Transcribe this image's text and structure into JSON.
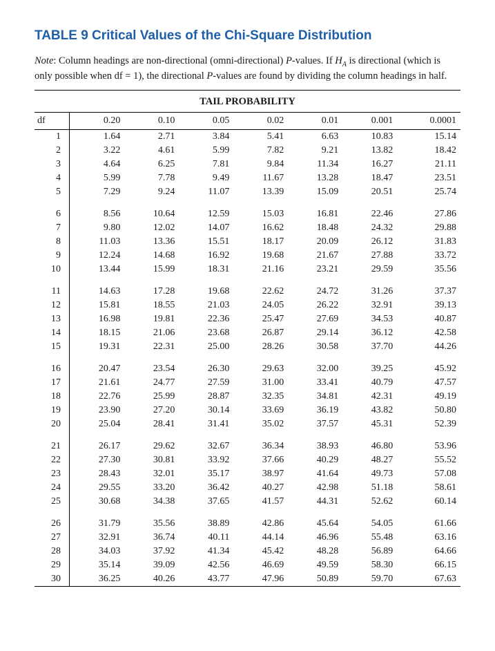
{
  "title": "TABLE 9 Critical Values of the Chi-Square Distribution",
  "note_prefix": "Note",
  "note_body": ": Column headings are non-directional (omni-directional) ",
  "note_pvalues": "P",
  "note_body2": "-values. If ",
  "note_ha": "H",
  "note_ha_sub": "A",
  "note_body3": " is directional (which is only possible when df = 1), the directional ",
  "note_body4": "-values are found by dividing the column headings in half.",
  "caption": "TAIL PROBABILITY",
  "headers": [
    "df",
    "0.20",
    "0.10",
    "0.05",
    "0.02",
    "0.01",
    "0.001",
    "0.0001"
  ],
  "colors": {
    "title": "#1e5fa8",
    "text": "#1a1a1a",
    "rule": "#000000",
    "background": "#ffffff"
  },
  "typography": {
    "title_fontsize": 19,
    "body_fontsize": 14.5,
    "table_fontsize": 14
  },
  "groups": [
    [
      [
        "1",
        "1.64",
        "2.71",
        "3.84",
        "5.41",
        "6.63",
        "10.83",
        "15.14"
      ],
      [
        "2",
        "3.22",
        "4.61",
        "5.99",
        "7.82",
        "9.21",
        "13.82",
        "18.42"
      ],
      [
        "3",
        "4.64",
        "6.25",
        "7.81",
        "9.84",
        "11.34",
        "16.27",
        "21.11"
      ],
      [
        "4",
        "5.99",
        "7.78",
        "9.49",
        "11.67",
        "13.28",
        "18.47",
        "23.51"
      ],
      [
        "5",
        "7.29",
        "9.24",
        "11.07",
        "13.39",
        "15.09",
        "20.51",
        "25.74"
      ]
    ],
    [
      [
        "6",
        "8.56",
        "10.64",
        "12.59",
        "15.03",
        "16.81",
        "22.46",
        "27.86"
      ],
      [
        "7",
        "9.80",
        "12.02",
        "14.07",
        "16.62",
        "18.48",
        "24.32",
        "29.88"
      ],
      [
        "8",
        "11.03",
        "13.36",
        "15.51",
        "18.17",
        "20.09",
        "26.12",
        "31.83"
      ],
      [
        "9",
        "12.24",
        "14.68",
        "16.92",
        "19.68",
        "21.67",
        "27.88",
        "33.72"
      ],
      [
        "10",
        "13.44",
        "15.99",
        "18.31",
        "21.16",
        "23.21",
        "29.59",
        "35.56"
      ]
    ],
    [
      [
        "11",
        "14.63",
        "17.28",
        "19.68",
        "22.62",
        "24.72",
        "31.26",
        "37.37"
      ],
      [
        "12",
        "15.81",
        "18.55",
        "21.03",
        "24.05",
        "26.22",
        "32.91",
        "39.13"
      ],
      [
        "13",
        "16.98",
        "19.81",
        "22.36",
        "25.47",
        "27.69",
        "34.53",
        "40.87"
      ],
      [
        "14",
        "18.15",
        "21.06",
        "23.68",
        "26.87",
        "29.14",
        "36.12",
        "42.58"
      ],
      [
        "15",
        "19.31",
        "22.31",
        "25.00",
        "28.26",
        "30.58",
        "37.70",
        "44.26"
      ]
    ],
    [
      [
        "16",
        "20.47",
        "23.54",
        "26.30",
        "29.63",
        "32.00",
        "39.25",
        "45.92"
      ],
      [
        "17",
        "21.61",
        "24.77",
        "27.59",
        "31.00",
        "33.41",
        "40.79",
        "47.57"
      ],
      [
        "18",
        "22.76",
        "25.99",
        "28.87",
        "32.35",
        "34.81",
        "42.31",
        "49.19"
      ],
      [
        "19",
        "23.90",
        "27.20",
        "30.14",
        "33.69",
        "36.19",
        "43.82",
        "50.80"
      ],
      [
        "20",
        "25.04",
        "28.41",
        "31.41",
        "35.02",
        "37.57",
        "45.31",
        "52.39"
      ]
    ],
    [
      [
        "21",
        "26.17",
        "29.62",
        "32.67",
        "36.34",
        "38.93",
        "46.80",
        "53.96"
      ],
      [
        "22",
        "27.30",
        "30.81",
        "33.92",
        "37.66",
        "40.29",
        "48.27",
        "55.52"
      ],
      [
        "23",
        "28.43",
        "32.01",
        "35.17",
        "38.97",
        "41.64",
        "49.73",
        "57.08"
      ],
      [
        "24",
        "29.55",
        "33.20",
        "36.42",
        "40.27",
        "42.98",
        "51.18",
        "58.61"
      ],
      [
        "25",
        "30.68",
        "34.38",
        "37.65",
        "41.57",
        "44.31",
        "52.62",
        "60.14"
      ]
    ],
    [
      [
        "26",
        "31.79",
        "35.56",
        "38.89",
        "42.86",
        "45.64",
        "54.05",
        "61.66"
      ],
      [
        "27",
        "32.91",
        "36.74",
        "40.11",
        "44.14",
        "46.96",
        "55.48",
        "63.16"
      ],
      [
        "28",
        "34.03",
        "37.92",
        "41.34",
        "45.42",
        "48.28",
        "56.89",
        "64.66"
      ],
      [
        "29",
        "35.14",
        "39.09",
        "42.56",
        "46.69",
        "49.59",
        "58.30",
        "66.15"
      ],
      [
        "30",
        "36.25",
        "40.26",
        "43.77",
        "47.96",
        "50.89",
        "59.70",
        "67.63"
      ]
    ]
  ]
}
